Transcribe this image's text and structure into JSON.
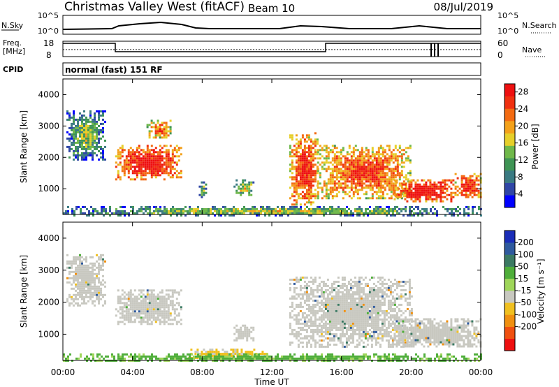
{
  "header": {
    "station": "Christmas Valley West (fitACF)",
    "beam": "Beam 10",
    "date": "08/Jul/2019"
  },
  "summary_panels": {
    "nsky_label": "N.Sky",
    "nsky_ticks": [
      "10^5",
      "10^0"
    ],
    "nsearch_label": "N.Search",
    "freq_label": "Freq.",
    "freq_unit": "[MHz]",
    "freq_ticks": [
      "18",
      "8"
    ],
    "nave_label": "Nave",
    "nave_ticks": [
      "60",
      "0"
    ],
    "cpid_label": "CPID",
    "cpid_value": "normal (fast) 151 RF"
  },
  "chart_data": [
    {
      "type": "heatmap",
      "panel": "power",
      "ylabel": "Slant Range [km]",
      "xlabel": "Time UT",
      "x_ticks": [
        "00:00",
        "04:00",
        "08:00",
        "12:00",
        "16:00",
        "20:00",
        "00:00"
      ],
      "xlim_hours": [
        0,
        24
      ],
      "y_ticks": [
        1000,
        2000,
        3000,
        4000
      ],
      "ylim": [
        180,
        4500
      ],
      "colorbar": {
        "label": "Power [dB]",
        "ticks": [
          4,
          8,
          12,
          16,
          20,
          24,
          28
        ],
        "colors": [
          "#0000ff",
          "#2f46a6",
          "#3a7a82",
          "#3f9455",
          "#6fb84a",
          "#e6cf2a",
          "#f3a11a",
          "#f36b12",
          "#f03010",
          "#ee1010"
        ]
      },
      "echo_regions": [
        {
          "t0": 0.2,
          "t1": 2.4,
          "r0": 1900,
          "r1": 3500,
          "value": 10
        },
        {
          "t0": 3.0,
          "t1": 6.8,
          "r0": 1300,
          "r1": 2400,
          "value": 26
        },
        {
          "t0": 4.8,
          "t1": 6.2,
          "r0": 2600,
          "r1": 3200,
          "value": 20
        },
        {
          "t0": 7.8,
          "t1": 8.2,
          "r0": 700,
          "r1": 1300,
          "value": 10
        },
        {
          "t0": 9.8,
          "t1": 11.0,
          "r0": 800,
          "r1": 1300,
          "value": 13
        },
        {
          "t0": 13.0,
          "t1": 14.6,
          "r0": 500,
          "r1": 2800,
          "value": 24
        },
        {
          "t0": 14.6,
          "t1": 20.0,
          "r0": 700,
          "r1": 2400,
          "value": 22
        },
        {
          "t0": 19.0,
          "t1": 22.5,
          "r0": 600,
          "r1": 1300,
          "value": 27
        },
        {
          "t0": 22.5,
          "t1": 24.0,
          "r0": 700,
          "r1": 1500,
          "value": 24
        },
        {
          "t0": 0.0,
          "t1": 24.0,
          "r0": 180,
          "r1": 450,
          "value": 12
        }
      ]
    },
    {
      "type": "heatmap",
      "panel": "velocity",
      "ylabel": "Slant Range [km]",
      "xlabel": "Time UT",
      "x_ticks": [
        "00:00",
        "04:00",
        "08:00",
        "12:00",
        "16:00",
        "20:00",
        "00:00"
      ],
      "xlim_hours": [
        0,
        24
      ],
      "y_ticks": [
        1000,
        2000,
        3000,
        4000
      ],
      "ylim": [
        180,
        4500
      ],
      "colorbar": {
        "label": "Velocity [m s⁻¹]",
        "ticks": [
          200,
          100,
          50,
          15,
          -15,
          -50,
          -100,
          -200
        ],
        "colors": [
          "#1a2db8",
          "#2f5a9e",
          "#3b7a63",
          "#4fae3a",
          "#9fd65a",
          "#c8c8c0",
          "#f0c020",
          "#f09010",
          "#f05010",
          "#ee1010"
        ]
      },
      "ground_scatter_color": "#c8c8c0",
      "echo_regions": [
        {
          "t0": 0.2,
          "t1": 2.4,
          "r0": 1900,
          "r1": 3500,
          "value": 0
        },
        {
          "t0": 3.0,
          "t1": 6.8,
          "r0": 1300,
          "r1": 2400,
          "value": 0
        },
        {
          "t0": 9.8,
          "t1": 11.0,
          "r0": 800,
          "r1": 1300,
          "value": 0
        },
        {
          "t0": 13.0,
          "t1": 20.0,
          "r0": 600,
          "r1": 2800,
          "value": 0
        },
        {
          "t0": 19.0,
          "t1": 24.0,
          "r0": 600,
          "r1": 1500,
          "value": 0
        },
        {
          "t0": 7.2,
          "t1": 11.8,
          "r0": 250,
          "r1": 550,
          "value": -60
        },
        {
          "t0": 0.0,
          "t1": 24.0,
          "r0": 180,
          "r1": 400,
          "value": 25
        }
      ]
    }
  ]
}
